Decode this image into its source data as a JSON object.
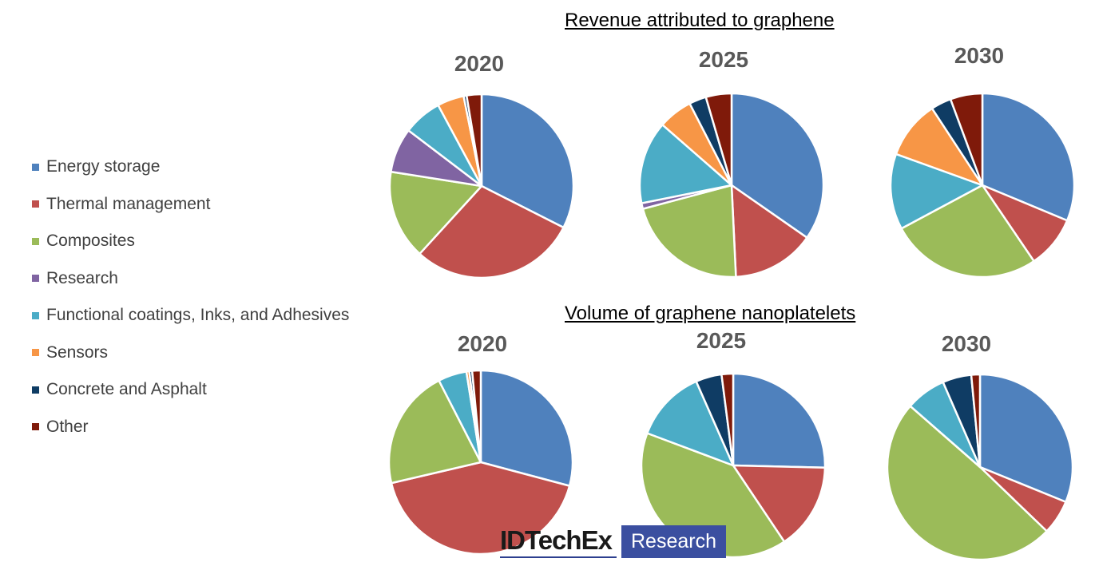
{
  "legend": {
    "items": [
      {
        "label": "Energy storage",
        "color": "#4f81bd"
      },
      {
        "label": "Thermal management",
        "color": "#c0504d"
      },
      {
        "label": "Composites",
        "color": "#9bbb59"
      },
      {
        "label": "Research",
        "color": "#8064a2"
      },
      {
        "label": "Functional coatings, Inks, and Adhesives",
        "color": "#4bacc6"
      },
      {
        "label": "Sensors",
        "color": "#f79646"
      },
      {
        "label": "Concrete and Asphalt",
        "color": "#0f3c64"
      },
      {
        "label": "Other",
        "color": "#7f1a0a"
      }
    ]
  },
  "sections": {
    "revenue_title": "Revenue attributed to graphene",
    "volume_title": "Volume of graphene nanoplatelets"
  },
  "branding": {
    "logo_name": "IDTechEx",
    "logo_box": "Research"
  },
  "chart_data": [
    {
      "type": "pie",
      "group": "Revenue attributed to graphene",
      "title": "2020",
      "categories": [
        "Energy storage",
        "Thermal management",
        "Composites",
        "Research",
        "Functional coatings, Inks, and Adhesives",
        "Sensors",
        "Concrete and Asphalt",
        "Other"
      ],
      "values": [
        31,
        28,
        15,
        7.5,
        6.5,
        4.5,
        0.5,
        2.5
      ]
    },
    {
      "type": "pie",
      "group": "Revenue attributed to graphene",
      "title": "2025",
      "categories": [
        "Energy storage",
        "Thermal management",
        "Composites",
        "Research",
        "Functional coatings, Inks, and Adhesives",
        "Sensors",
        "Concrete and Asphalt",
        "Other"
      ],
      "values": [
        34.5,
        14.5,
        21.5,
        1,
        14.5,
        6,
        3,
        4.5
      ]
    },
    {
      "type": "pie",
      "group": "Revenue attributed to graphene",
      "title": "2030",
      "categories": [
        "Energy storage",
        "Thermal management",
        "Composites",
        "Research",
        "Functional coatings, Inks, and Adhesives",
        "Sensors",
        "Concrete and Asphalt",
        "Other"
      ],
      "values": [
        30.5,
        9,
        26,
        0,
        13,
        10,
        3.5,
        5.5
      ]
    },
    {
      "type": "pie",
      "group": "Volume of graphene nanoplatelets",
      "title": "2020",
      "categories": [
        "Energy storage",
        "Thermal management",
        "Composites",
        "Research",
        "Functional coatings, Inks, and Adhesives",
        "Sensors",
        "Concrete and Asphalt",
        "Other"
      ],
      "values": [
        29,
        42,
        21,
        0,
        5,
        0.5,
        0.5,
        1.5
      ]
    },
    {
      "type": "pie",
      "group": "Volume of graphene nanoplatelets",
      "title": "2025",
      "categories": [
        "Energy storage",
        "Thermal management",
        "Composites",
        "Research",
        "Functional coatings, Inks, and Adhesives",
        "Sensors",
        "Concrete and Asphalt",
        "Other"
      ],
      "values": [
        25,
        15,
        39.5,
        0,
        12.5,
        0,
        4.5,
        2
      ]
    },
    {
      "type": "pie",
      "group": "Volume of graphene nanoplatelets",
      "title": "2030",
      "categories": [
        "Energy storage",
        "Thermal management",
        "Composites",
        "Research",
        "Functional coatings, Inks, and Adhesives",
        "Sensors",
        "Concrete and Asphalt",
        "Other"
      ],
      "values": [
        31,
        6,
        49,
        0,
        7,
        0,
        5,
        1.5
      ]
    }
  ]
}
